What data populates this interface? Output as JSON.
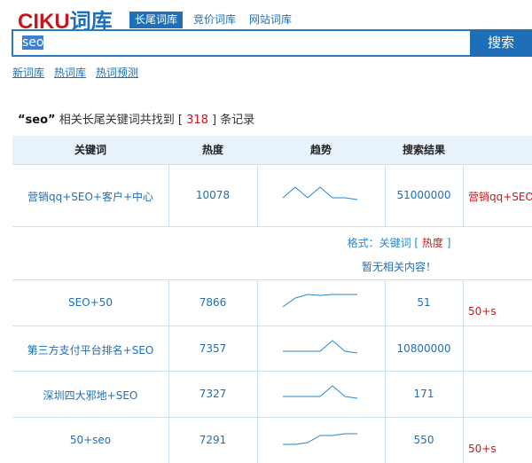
{
  "logo": {
    "brand": "CIKU",
    "suffix": "词库"
  },
  "tabs": [
    {
      "label": "长尾词库",
      "active": true
    },
    {
      "label": "竞价词库"
    },
    {
      "label": "网站词库"
    }
  ],
  "search": {
    "value": "seo",
    "button": "搜索"
  },
  "links": [
    "新词库",
    "热词库",
    "热词预测"
  ],
  "summary": {
    "query": "“seo”",
    "text": "相关长尾关键词共找到 [",
    "count": "318",
    "tail": "] 条记录"
  },
  "table": {
    "headers": [
      "关键词",
      "热度",
      "趋势",
      "搜索结果"
    ],
    "rows": [
      {
        "keyword": "营销qq+SEO+客户+中心",
        "heat": "10078",
        "trend": [
          2,
          8,
          2,
          8,
          2,
          2,
          1
        ],
        "results": "51000000",
        "extra": "营销qq+SEO+"
      },
      {
        "keyword": "SEO+50",
        "heat": "7866",
        "trend": [
          1,
          6,
          8,
          7.5,
          8,
          8,
          8
        ],
        "results": "51",
        "extra": "50+s"
      },
      {
        "keyword": "第三方支付平台排名+SEO",
        "heat": "7357",
        "trend": [
          2,
          2,
          2,
          2,
          8,
          2,
          1
        ],
        "results": "10800000",
        "extra": ""
      },
      {
        "keyword": "深圳四大邪地+SEO",
        "heat": "7327",
        "trend": [
          2,
          2,
          2,
          2,
          8,
          2,
          1
        ],
        "results": "171",
        "extra": ""
      },
      {
        "keyword": "50+seo",
        "heat": "7291",
        "trend": [
          1,
          1,
          2,
          6,
          6,
          7,
          7
        ],
        "results": "550",
        "extra": "50+s"
      }
    ]
  },
  "popup": {
    "format_label": "格式：关键词 [",
    "format_heat": "热度",
    "format_end": "]",
    "empty": "暂无相关内容！"
  },
  "colors": {
    "brand_red": "#c8161d",
    "brand_blue": "#1e6fb8"
  }
}
